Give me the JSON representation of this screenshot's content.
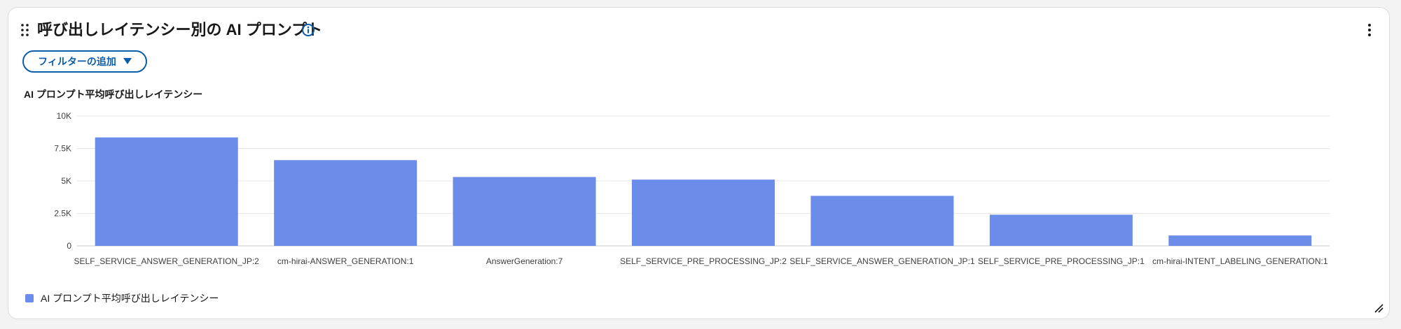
{
  "card": {
    "title": "呼び出しレイテンシー別の AI プロンプト",
    "info_icon": "info-icon",
    "menu_icon": "kebab-menu-icon",
    "drag_icon": "drag-handle-icon",
    "resize_icon": "resize-handle-icon"
  },
  "filter": {
    "label": "フィルターの追加",
    "icon": "caret-down-icon"
  },
  "colors": {
    "accent": "#0b5cab",
    "bar": "#6b8ce8",
    "grid": "#e5e5e5",
    "axis_text": "#3e3e3c"
  },
  "chart_data": {
    "type": "bar",
    "title": "AI プロンプト平均呼び出しレイテンシー",
    "xlabel": "",
    "ylabel": "",
    "ylim": [
      0,
      10000
    ],
    "yticks": [
      0,
      2500,
      5000,
      7500,
      10000
    ],
    "ytick_labels": [
      "0",
      "2.5K",
      "5K",
      "7.5K",
      "10K"
    ],
    "grid": true,
    "legend_position": "bottom-left",
    "categories": [
      "SELF_SERVICE_ANSWER_GENERATION_JP:2",
      "cm-hirai-ANSWER_GENERATION:1",
      "AnswerGeneration:7",
      "SELF_SERVICE_PRE_PROCESSING_JP:2",
      "SELF_SERVICE_ANSWER_GENERATION_JP:1",
      "SELF_SERVICE_PRE_PROCESSING_JP:1",
      "cm-hirai-INTENT_LABELING_GENERATION:1"
    ],
    "series": [
      {
        "name": "AI プロンプト平均呼び出しレイテンシー",
        "values": [
          8350,
          6600,
          5300,
          5100,
          3850,
          2400,
          800
        ]
      }
    ]
  }
}
